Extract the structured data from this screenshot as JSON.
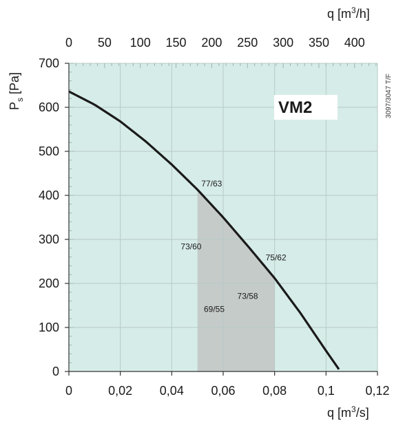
{
  "chart_data": {
    "type": "line",
    "model": "VM2",
    "code": "3097/3047 T/F",
    "ylabel_main": "P",
    "ylabel_sub": "s",
    "ylabel_unit": "[Pa]",
    "xlabel_prefix": "q [m",
    "xlabel_sup": "3",
    "xlabel_suffix": "/s]",
    "x2label_prefix": "q [m",
    "x2label_sup": "3",
    "x2label_suffix": "/h]",
    "xlim": [
      0,
      0.12
    ],
    "ylim": [
      0,
      700
    ],
    "x2lim": [
      0,
      432
    ],
    "x_ticks": [
      "0",
      "0,02",
      "0,04",
      "0,06",
      "0,08",
      "0,1",
      "0,12"
    ],
    "x_tick_values": [
      0,
      0.02,
      0.04,
      0.06,
      0.08,
      0.1,
      0.12
    ],
    "y_ticks": [
      "0",
      "100",
      "200",
      "300",
      "400",
      "500",
      "600",
      "700"
    ],
    "y_tick_values": [
      0,
      100,
      200,
      300,
      400,
      500,
      600,
      700
    ],
    "x2_ticks": [
      "0",
      "50",
      "100",
      "150",
      "200",
      "250",
      "300",
      "350",
      "400"
    ],
    "x2_tick_values": [
      0,
      50,
      100,
      150,
      200,
      250,
      300,
      350,
      400
    ],
    "grid": true,
    "series": [
      {
        "x": [
          0,
          0.01,
          0.02,
          0.03,
          0.04,
          0.05,
          0.06,
          0.07,
          0.08,
          0.09,
          0.1,
          0.105
        ],
        "y": [
          636,
          606,
          568,
          522,
          470,
          413,
          350,
          282,
          212,
          133,
          47,
          5
        ]
      }
    ],
    "operating_range": {
      "x_min": 0.05,
      "x_max": 0.08
    },
    "annotations": [
      {
        "text": "77/63",
        "x": 0.0515,
        "y": 420
      },
      {
        "text": "73/60",
        "x": 0.0435,
        "y": 277
      },
      {
        "text": "75/62",
        "x": 0.0765,
        "y": 252
      },
      {
        "text": "73/58",
        "x": 0.0655,
        "y": 165
      },
      {
        "text": "69/55",
        "x": 0.0525,
        "y": 135
      }
    ],
    "colors": {
      "background": "#d6ece8",
      "grid": "#b8c9c6",
      "range_fill": "#c5cbc9",
      "curve": "#1a1a1a"
    }
  }
}
